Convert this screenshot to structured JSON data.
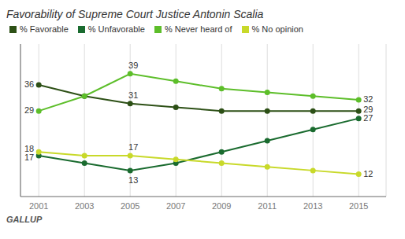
{
  "chart_data": {
    "type": "line",
    "title": "Favorability of Supreme Court Justice Antonin Scalia",
    "x": [
      2001,
      2003,
      2005,
      2007,
      2009,
      2011,
      2013,
      2015
    ],
    "xlim": [
      2000.2,
      2016.2
    ],
    "xticks": [
      2001,
      2003,
      2005,
      2007,
      2009,
      2011,
      2013,
      2015
    ],
    "ylim": [
      6,
      47
    ],
    "tick_labels": "x",
    "grid": true,
    "legend": "upper left",
    "marker": "circle",
    "series": [
      {
        "name": "% Favorable",
        "color": "#2d5016",
        "values": [
          36,
          33,
          31,
          30,
          29,
          29,
          29,
          29
        ]
      },
      {
        "name": "% Unfavorable",
        "color": "#1a6b2f",
        "values": [
          17,
          15,
          13,
          15,
          18,
          21,
          24,
          27
        ]
      },
      {
        "name": "% Never heard of",
        "color": "#5dbe2a",
        "values": [
          29,
          33,
          39,
          37,
          35,
          34,
          33,
          32
        ]
      },
      {
        "name": "% No opinion",
        "color": "#c8d92a",
        "values": [
          18,
          17,
          17,
          16,
          15,
          14,
          13,
          12
        ]
      }
    ],
    "annotations": [
      {
        "x": 2001,
        "y": 36,
        "text": "36"
      },
      {
        "x": 2005,
        "y": 31,
        "text": "31"
      },
      {
        "x": 2015,
        "y": 29,
        "text": "29"
      },
      {
        "x": 2001,
        "y": 17,
        "text": "17"
      },
      {
        "x": 2005,
        "y": 13,
        "text": "13"
      },
      {
        "x": 2015,
        "y": 27,
        "text": "27"
      },
      {
        "x": 2001,
        "y": 29,
        "text": "29"
      },
      {
        "x": 2005,
        "y": 39,
        "text": "39"
      },
      {
        "x": 2015,
        "y": 32,
        "text": "32"
      },
      {
        "x": 2001,
        "y": 18,
        "text": "18"
      },
      {
        "x": 2005,
        "y": 17,
        "text": "17"
      },
      {
        "x": 2015,
        "y": 12,
        "text": "12"
      }
    ],
    "source": "GALLUP"
  }
}
